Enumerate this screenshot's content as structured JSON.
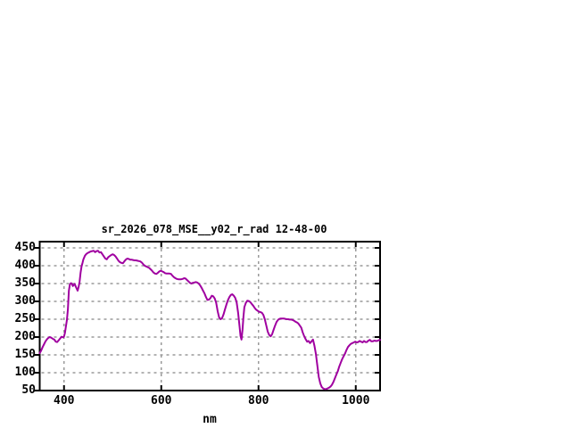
{
  "chart_data": {
    "type": "line",
    "title": "sr_2026_078_MSE__y02_r_rad 12-48-00",
    "xlabel": "nm",
    "ylabel": "",
    "xlim": [
      350,
      1050
    ],
    "ylim": [
      50,
      467.5
    ],
    "xticks": [
      "400",
      "600",
      "800",
      "1000"
    ],
    "yticks": [
      "50",
      "100",
      "150",
      "200",
      "250",
      "300",
      "350",
      "400",
      "450"
    ],
    "grid": true,
    "legend_position": "none",
    "line_color": "#a000a0",
    "grid_color": "#9a9a9a",
    "border_color": "#000000",
    "series": [
      {
        "points": [
          [
            350,
            155
          ],
          [
            353,
            162
          ],
          [
            356,
            172
          ],
          [
            359,
            180
          ],
          [
            362,
            188
          ],
          [
            365,
            194
          ],
          [
            368,
            198
          ],
          [
            371,
            200
          ],
          [
            374,
            198
          ],
          [
            377,
            195
          ],
          [
            380,
            193
          ],
          [
            383,
            187
          ],
          [
            386,
            186
          ],
          [
            389,
            191
          ],
          [
            392,
            196
          ],
          [
            395,
            201
          ],
          [
            398,
            199
          ],
          [
            400,
            202
          ],
          [
            402,
            212
          ],
          [
            404,
            230
          ],
          [
            406,
            248
          ],
          [
            408,
            278
          ],
          [
            410,
            330
          ],
          [
            412,
            347
          ],
          [
            414,
            351
          ],
          [
            416,
            350
          ],
          [
            418,
            343
          ],
          [
            420,
            346
          ],
          [
            422,
            349
          ],
          [
            424,
            342
          ],
          [
            426,
            336
          ],
          [
            428,
            330
          ],
          [
            430,
            340
          ],
          [
            432,
            355
          ],
          [
            434,
            380
          ],
          [
            436,
            398
          ],
          [
            438,
            408
          ],
          [
            440,
            418
          ],
          [
            443,
            428
          ],
          [
            446,
            433
          ],
          [
            449,
            436
          ],
          [
            452,
            438
          ],
          [
            455,
            440
          ],
          [
            458,
            441
          ],
          [
            461,
            442
          ],
          [
            464,
            438
          ],
          [
            467,
            441
          ],
          [
            470,
            442
          ],
          [
            473,
            437
          ],
          [
            476,
            438
          ],
          [
            479,
            432
          ],
          [
            482,
            426
          ],
          [
            485,
            420
          ],
          [
            488,
            418
          ],
          [
            491,
            424
          ],
          [
            494,
            427
          ],
          [
            497,
            430
          ],
          [
            500,
            432
          ],
          [
            503,
            430
          ],
          [
            506,
            426
          ],
          [
            509,
            420
          ],
          [
            512,
            414
          ],
          [
            515,
            410
          ],
          [
            518,
            408
          ],
          [
            521,
            407
          ],
          [
            524,
            412
          ],
          [
            527,
            417
          ],
          [
            530,
            420
          ],
          [
            533,
            419
          ],
          [
            536,
            417
          ],
          [
            539,
            417
          ],
          [
            542,
            416
          ],
          [
            545,
            415
          ],
          [
            548,
            415
          ],
          [
            551,
            414
          ],
          [
            554,
            413
          ],
          [
            557,
            412
          ],
          [
            560,
            409
          ],
          [
            563,
            404
          ],
          [
            566,
            400
          ],
          [
            569,
            398
          ],
          [
            572,
            396
          ],
          [
            575,
            394
          ],
          [
            578,
            390
          ],
          [
            581,
            386
          ],
          [
            584,
            381
          ],
          [
            587,
            378
          ],
          [
            590,
            377
          ],
          [
            593,
            380
          ],
          [
            596,
            384
          ],
          [
            599,
            386
          ],
          [
            602,
            384
          ],
          [
            605,
            382
          ],
          [
            608,
            379
          ],
          [
            611,
            378
          ],
          [
            614,
            378
          ],
          [
            617,
            378
          ],
          [
            620,
            377
          ],
          [
            623,
            372
          ],
          [
            626,
            368
          ],
          [
            629,
            365
          ],
          [
            632,
            363
          ],
          [
            635,
            362
          ],
          [
            638,
            362
          ],
          [
            641,
            362
          ],
          [
            644,
            363
          ],
          [
            647,
            365
          ],
          [
            650,
            364
          ],
          [
            653,
            360
          ],
          [
            656,
            356
          ],
          [
            659,
            352
          ],
          [
            662,
            350
          ],
          [
            665,
            352
          ],
          [
            668,
            353
          ],
          [
            671,
            354
          ],
          [
            674,
            353
          ],
          [
            677,
            350
          ],
          [
            680,
            345
          ],
          [
            683,
            338
          ],
          [
            686,
            330
          ],
          [
            689,
            322
          ],
          [
            692,
            312
          ],
          [
            695,
            304
          ],
          [
            698,
            305
          ],
          [
            701,
            309
          ],
          [
            704,
            316
          ],
          [
            707,
            314
          ],
          [
            710,
            308
          ],
          [
            713,
            296
          ],
          [
            716,
            272
          ],
          [
            719,
            255
          ],
          [
            722,
            250
          ],
          [
            725,
            253
          ],
          [
            728,
            263
          ],
          [
            731,
            277
          ],
          [
            734,
            291
          ],
          [
            737,
            303
          ],
          [
            740,
            312
          ],
          [
            743,
            318
          ],
          [
            746,
            320
          ],
          [
            749,
            316
          ],
          [
            752,
            310
          ],
          [
            755,
            298
          ],
          [
            758,
            268
          ],
          [
            761,
            230
          ],
          [
            763,
            203
          ],
          [
            765,
            193
          ],
          [
            767,
            220
          ],
          [
            769,
            258
          ],
          [
            771,
            284
          ],
          [
            774,
            296
          ],
          [
            777,
            302
          ],
          [
            780,
            301
          ],
          [
            783,
            298
          ],
          [
            786,
            293
          ],
          [
            789,
            288
          ],
          [
            792,
            282
          ],
          [
            795,
            277
          ],
          [
            798,
            274
          ],
          [
            801,
            271
          ],
          [
            804,
            270
          ],
          [
            807,
            268
          ],
          [
            810,
            262
          ],
          [
            813,
            250
          ],
          [
            816,
            232
          ],
          [
            819,
            215
          ],
          [
            822,
            206
          ],
          [
            825,
            202
          ],
          [
            828,
            208
          ],
          [
            831,
            220
          ],
          [
            834,
            232
          ],
          [
            837,
            242
          ],
          [
            840,
            248
          ],
          [
            843,
            251
          ],
          [
            846,
            252
          ],
          [
            849,
            252
          ],
          [
            852,
            252
          ],
          [
            855,
            251
          ],
          [
            858,
            250
          ],
          [
            861,
            250
          ],
          [
            864,
            249
          ],
          [
            867,
            249
          ],
          [
            870,
            248
          ],
          [
            873,
            246
          ],
          [
            876,
            243
          ],
          [
            879,
            241
          ],
          [
            882,
            238
          ],
          [
            885,
            232
          ],
          [
            888,
            226
          ],
          [
            891,
            213
          ],
          [
            894,
            202
          ],
          [
            897,
            194
          ],
          [
            900,
            187
          ],
          [
            903,
            189
          ],
          [
            906,
            183
          ],
          [
            909,
            188
          ],
          [
            912,
            193
          ],
          [
            915,
            176
          ],
          [
            918,
            152
          ],
          [
            921,
            120
          ],
          [
            924,
            88
          ],
          [
            927,
            70
          ],
          [
            930,
            60
          ],
          [
            933,
            56
          ],
          [
            936,
            54
          ],
          [
            939,
            54
          ],
          [
            942,
            56
          ],
          [
            945,
            58
          ],
          [
            948,
            61
          ],
          [
            951,
            66
          ],
          [
            954,
            74
          ],
          [
            957,
            84
          ],
          [
            960,
            94
          ],
          [
            963,
            104
          ],
          [
            966,
            117
          ],
          [
            969,
            128
          ],
          [
            972,
            138
          ],
          [
            975,
            146
          ],
          [
            978,
            154
          ],
          [
            981,
            164
          ],
          [
            984,
            172
          ],
          [
            987,
            177
          ],
          [
            990,
            181
          ],
          [
            993,
            183
          ],
          [
            996,
            185
          ],
          [
            999,
            187
          ],
          [
            1002,
            185
          ],
          [
            1005,
            186
          ],
          [
            1008,
            189
          ],
          [
            1011,
            187
          ],
          [
            1014,
            185
          ],
          [
            1017,
            189
          ],
          [
            1020,
            186
          ],
          [
            1023,
            186
          ],
          [
            1026,
            190
          ],
          [
            1029,
            192
          ],
          [
            1032,
            188
          ],
          [
            1035,
            188
          ],
          [
            1038,
            190
          ],
          [
            1041,
            189
          ],
          [
            1044,
            189
          ],
          [
            1047,
            191
          ],
          [
            1050,
            192
          ]
        ]
      }
    ]
  }
}
